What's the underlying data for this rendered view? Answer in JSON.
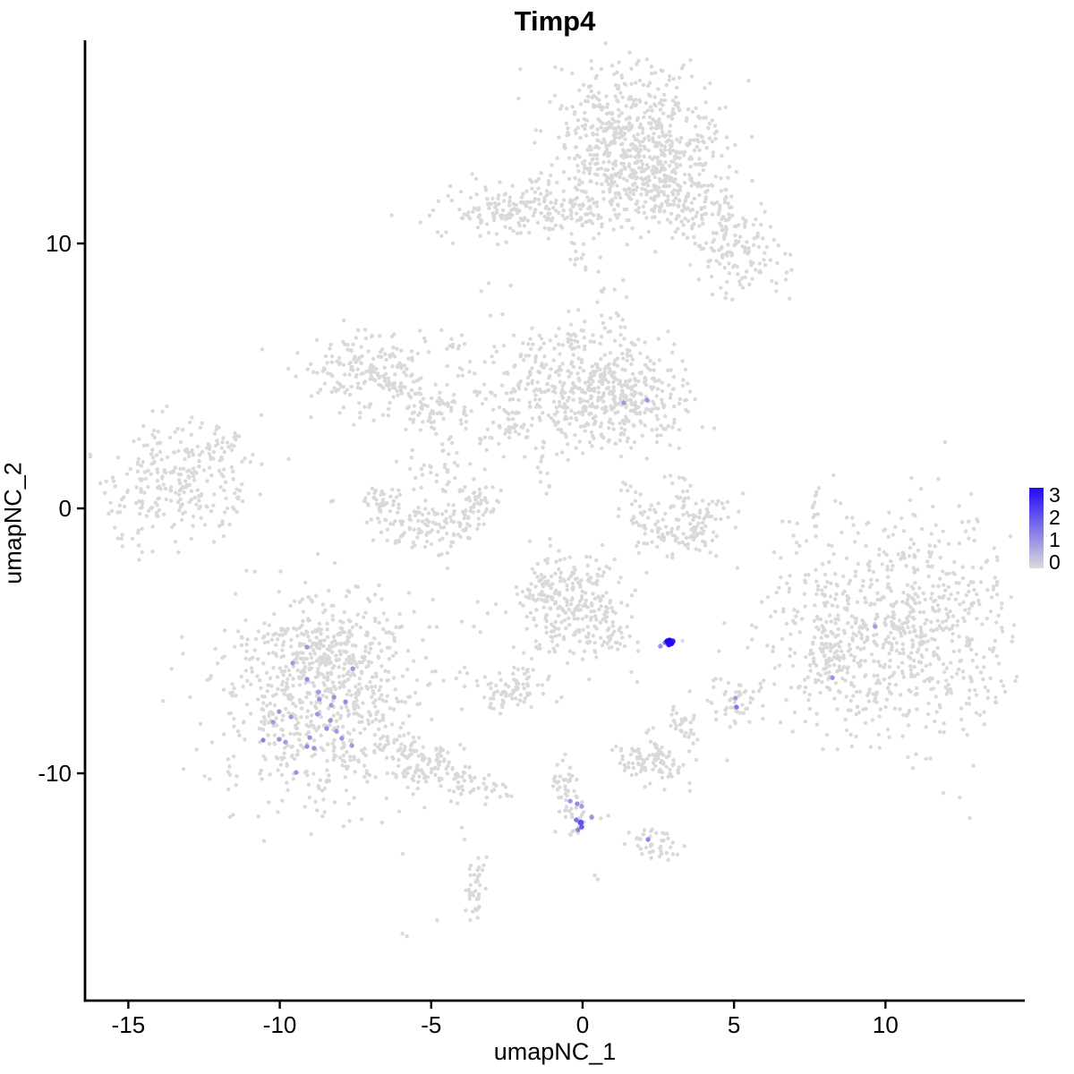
{
  "title": "Timp4",
  "axes": {
    "x_label": "umapNC_1",
    "y_label": "umapNC_2",
    "x_ticks": [
      -15,
      -10,
      -5,
      0,
      5,
      10
    ],
    "y_ticks": [
      10,
      0,
      -10
    ]
  },
  "legend": {
    "tick_labels": [
      "3",
      "2",
      "1",
      "0"
    ],
    "color_high": "#2109F5",
    "color_low": "#DBDBDB"
  },
  "colors": {
    "point_gray": "#D9D9D9",
    "axis": "#000000",
    "background": "#FFFFFF"
  },
  "chart_data": {
    "type": "scatter",
    "title": "Timp4",
    "xlabel": "umapNC_1",
    "ylabel": "umapNC_2",
    "xlim": [
      -16.43,
      14.6
    ],
    "ylim": [
      -18.58,
      17.67
    ],
    "grid": false,
    "legend_position": "right",
    "color_scale": {
      "low_value": 0,
      "high_value": 3,
      "low": "#D9D9D9",
      "high": "#2109F5"
    },
    "clusters": [
      {
        "t": "g",
        "x": 1.55,
        "y": 13.9,
        "sx": 1.45,
        "sy": 1.35,
        "n": 600
      },
      {
        "t": "g",
        "x": 2.5,
        "y": 12.2,
        "sx": 1.0,
        "sy": 0.8,
        "n": 150
      },
      {
        "t": "c",
        "x1": 3.0,
        "y1": 11.6,
        "x2": 4.8,
        "y2": 10.1,
        "s": 0.5,
        "n": 70
      },
      {
        "t": "g",
        "x": 5.35,
        "y": 9.35,
        "sx": 0.75,
        "sy": 0.75,
        "n": 90
      },
      {
        "t": "g",
        "x": 4.6,
        "y": 11.2,
        "sx": 0.8,
        "sy": 0.55,
        "n": 45
      },
      {
        "t": "g",
        "x": -2.0,
        "y": 11.2,
        "sx": 1.45,
        "sy": 0.5,
        "n": 200
      },
      {
        "t": "c",
        "x1": -0.4,
        "y1": 11.3,
        "x2": 1.0,
        "y2": 10.7,
        "s": 0.3,
        "n": 22
      },
      {
        "t": "c",
        "x1": -0.9,
        "y1": 10.4,
        "x2": 0.3,
        "y2": 9.1,
        "s": 0.35,
        "n": 16
      },
      {
        "t": "c",
        "x1": 1.05,
        "y1": 8.6,
        "x2": 1.35,
        "y2": 5.9,
        "s": 0.22,
        "n": 12
      },
      {
        "t": "p",
        "pts": [
          [
            -3.35,
            8.2
          ],
          [
            -3.1,
            8.5
          ],
          [
            -10.58,
            6.0
          ]
        ]
      },
      {
        "t": "g",
        "x": -7.1,
        "y": 5.2,
        "sx": 0.95,
        "sy": 0.8,
        "n": 190
      },
      {
        "t": "c",
        "x1": -6.2,
        "y1": 4.6,
        "x2": -4.6,
        "y2": 3.9,
        "s": 0.3,
        "n": 30
      },
      {
        "t": "g",
        "x": -4.85,
        "y": 3.65,
        "sx": 0.55,
        "sy": 0.4,
        "n": 55
      },
      {
        "t": "c",
        "x1": -4.55,
        "y1": 6.6,
        "x2": -3.1,
        "y2": 4.1,
        "s": 0.25,
        "n": 20
      },
      {
        "t": "g",
        "x": -0.4,
        "y": 4.7,
        "sx": 1.45,
        "sy": 1.25,
        "n": 400
      },
      {
        "t": "g",
        "x": 1.5,
        "y": 4.1,
        "sx": 1.0,
        "sy": 0.8,
        "n": 220
      },
      {
        "t": "c",
        "x1": -2.2,
        "y1": 3.3,
        "x2": -3.3,
        "y2": 2.4,
        "s": 0.3,
        "n": 25
      },
      {
        "t": "c",
        "x1": -1.45,
        "y1": 2.2,
        "x2": -1.2,
        "y2": 0.6,
        "s": 0.15,
        "n": 10
      },
      {
        "t": "c",
        "x1": -4.45,
        "y1": 2.5,
        "x2": -4.55,
        "y2": 0.8,
        "s": 0.15,
        "n": 12
      },
      {
        "t": "a",
        "x": -5.05,
        "y": 0.8,
        "rx": 1.7,
        "ry": 1.7,
        "a0": 180,
        "a1": 360,
        "th": 0.45,
        "n": 200
      },
      {
        "t": "g",
        "x": -5.0,
        "y": 1.3,
        "sx": 0.9,
        "sy": 0.5,
        "n": 28
      },
      {
        "t": "g",
        "x": -13.5,
        "y": 1.0,
        "sx": 1.35,
        "sy": 1.1,
        "n": 270
      },
      {
        "t": "c",
        "x1": -12.3,
        "y1": 1.9,
        "x2": -11.35,
        "y2": 2.75,
        "s": 0.2,
        "n": 20
      },
      {
        "t": "a",
        "x": 3.2,
        "y": 0.4,
        "rx": 1.35,
        "ry": 1.45,
        "a0": 185,
        "a1": 355,
        "th": 0.45,
        "n": 130
      },
      {
        "t": "c",
        "x1": 3.1,
        "y1": 1.25,
        "x2": 3.6,
        "y2": -0.3,
        "s": 0.18,
        "n": 20
      },
      {
        "t": "c",
        "x1": 1.35,
        "y1": 0.9,
        "x2": 1.95,
        "y2": 0.3,
        "s": 0.15,
        "n": 8
      },
      {
        "t": "c",
        "x1": 7.8,
        "y1": 0.8,
        "x2": 7.6,
        "y2": -0.6,
        "s": 0.07,
        "n": 9
      },
      {
        "t": "p",
        "pts": [
          [
            7.7,
            -1.05
          ]
        ]
      },
      {
        "t": "g",
        "x": 10.4,
        "y": -4.6,
        "sx": 2.2,
        "sy": 2.1,
        "n": 820
      },
      {
        "t": "g",
        "x": 8.2,
        "y": -5.6,
        "sx": 0.55,
        "sy": 1.05,
        "n": 55
      },
      {
        "t": "g",
        "x": -0.55,
        "y": -3.4,
        "sx": 1.0,
        "sy": 0.9,
        "n": 250
      },
      {
        "t": "g",
        "x": 0.65,
        "y": -4.9,
        "sx": 0.5,
        "sy": 0.5,
        "n": 55
      },
      {
        "t": "c",
        "x1": -1.35,
        "y1": -5.0,
        "x2": -2.1,
        "y2": -6.3,
        "s": 0.18,
        "n": 11
      },
      {
        "t": "g",
        "x": -2.4,
        "y": -6.9,
        "sx": 0.6,
        "sy": 0.38,
        "n": 70
      },
      {
        "t": "p",
        "pts": [
          [
            -1.3,
            -7.0
          ],
          [
            -0.85,
            -7.3
          ],
          [
            -2.65,
            -7.5
          ],
          [
            1.8,
            -6.55
          ]
        ]
      },
      {
        "t": "g",
        "x": -8.5,
        "y": -7.3,
        "sx": 1.85,
        "sy": 2.0,
        "n": 680
      },
      {
        "t": "g",
        "x": -8.6,
        "y": -5.3,
        "sx": 1.25,
        "sy": 0.75,
        "n": 170
      },
      {
        "t": "c",
        "x1": -6.4,
        "y1": -9.0,
        "x2": -3.6,
        "y2": -10.4,
        "s": 0.42,
        "n": 130
      },
      {
        "t": "c",
        "x1": -3.4,
        "y1": -10.5,
        "x2": -2.5,
        "y2": -10.9,
        "s": 0.2,
        "n": 14
      },
      {
        "t": "g",
        "x": 2.35,
        "y": -9.45,
        "sx": 0.75,
        "sy": 0.48,
        "n": 100
      },
      {
        "t": "g",
        "x": 3.25,
        "y": -7.9,
        "sx": 0.28,
        "sy": 0.45,
        "n": 25
      },
      {
        "t": "g",
        "x": 5.0,
        "y": -7.35,
        "sx": 0.48,
        "sy": 0.38,
        "n": 45
      },
      {
        "t": "c",
        "x1": -0.75,
        "y1": -9.7,
        "x2": -0.2,
        "y2": -12.3,
        "s": 0.22,
        "n": 65
      },
      {
        "t": "p",
        "pts": [
          [
            0.3,
            -11.6
          ],
          [
            0.6,
            -11.7
          ],
          [
            0.85,
            -11.6
          ],
          [
            -0.9,
            -12.2
          ]
        ]
      },
      {
        "t": "g",
        "x": 2.2,
        "y": -12.55,
        "sx": 0.5,
        "sy": 0.3,
        "n": 35
      },
      {
        "t": "c",
        "x1": 2.6,
        "y1": -12.9,
        "x2": 2.9,
        "y2": -13.2,
        "s": 0.1,
        "n": 6
      },
      {
        "t": "c",
        "x1": -3.45,
        "y1": -13.35,
        "x2": -3.6,
        "y2": -15.2,
        "s": 0.2,
        "n": 40
      },
      {
        "t": "p",
        "pts": [
          [
            -3.99,
            -12.05
          ],
          [
            -3.9,
            -12.5
          ],
          [
            -4.8,
            -15.55
          ],
          [
            -5.95,
            -16.05
          ],
          [
            -5.8,
            -16.15
          ],
          [
            0.4,
            -13.85
          ],
          [
            0.5,
            -14.0
          ]
        ]
      }
    ],
    "expression_points": [
      [
        1.36,
        3.99,
        0.9
      ],
      [
        2.13,
        4.09,
        1.0
      ],
      [
        2.57,
        -5.2,
        1.0
      ],
      [
        2.72,
        -5.07,
        1.4
      ],
      [
        2.8,
        -5.02,
        3.0
      ],
      [
        2.87,
        -4.99,
        3.0
      ],
      [
        2.93,
        -5.09,
        3.0
      ],
      [
        2.97,
        -5.02,
        2.6
      ],
      [
        2.85,
        -5.13,
        2.8
      ],
      [
        9.66,
        -4.46,
        0.9
      ],
      [
        8.25,
        -6.39,
        1.0
      ],
      [
        5.05,
        -7.16,
        0.9
      ],
      [
        5.08,
        -7.5,
        1.4
      ],
      [
        -9.1,
        -5.24,
        1.0
      ],
      [
        -9.57,
        -5.84,
        0.9
      ],
      [
        -7.59,
        -6.05,
        1.0
      ],
      [
        -9.1,
        -6.45,
        1.1
      ],
      [
        -8.72,
        -6.93,
        0.9
      ],
      [
        -8.69,
        -7.2,
        1.0
      ],
      [
        -8.21,
        -7.13,
        1.0
      ],
      [
        -8.3,
        -7.43,
        0.9
      ],
      [
        -7.83,
        -7.3,
        1.1
      ],
      [
        -10.02,
        -7.67,
        1.0
      ],
      [
        -9.63,
        -7.87,
        0.9
      ],
      [
        -8.75,
        -7.77,
        1.0
      ],
      [
        -8.33,
        -8.01,
        1.0
      ],
      [
        -10.22,
        -8.07,
        0.9
      ],
      [
        -8.45,
        -8.31,
        1.1
      ],
      [
        -8.13,
        -8.41,
        0.9
      ],
      [
        -10.55,
        -8.75,
        1.2
      ],
      [
        -10.02,
        -8.72,
        1.0
      ],
      [
        -9.81,
        -8.82,
        0.9
      ],
      [
        -9.01,
        -8.65,
        1.0
      ],
      [
        -7.95,
        -8.68,
        1.0
      ],
      [
        -9.1,
        -8.99,
        1.1
      ],
      [
        -8.87,
        -9.05,
        1.0
      ],
      [
        -7.62,
        -8.95,
        0.9
      ],
      [
        -9.46,
        -9.97,
        1.0
      ],
      [
        -0.41,
        -11.05,
        1.0
      ],
      [
        -0.18,
        -11.15,
        1.1
      ],
      [
        -0.03,
        -11.25,
        0.9
      ],
      [
        -0.21,
        -11.76,
        1.5
      ],
      [
        -0.06,
        -11.86,
        2.0
      ],
      [
        -0.03,
        -12.03,
        1.8
      ],
      [
        -0.15,
        -12.13,
        1.3
      ],
      [
        0.3,
        -11.66,
        1.0
      ],
      [
        2.16,
        -12.5,
        1.2
      ]
    ]
  }
}
